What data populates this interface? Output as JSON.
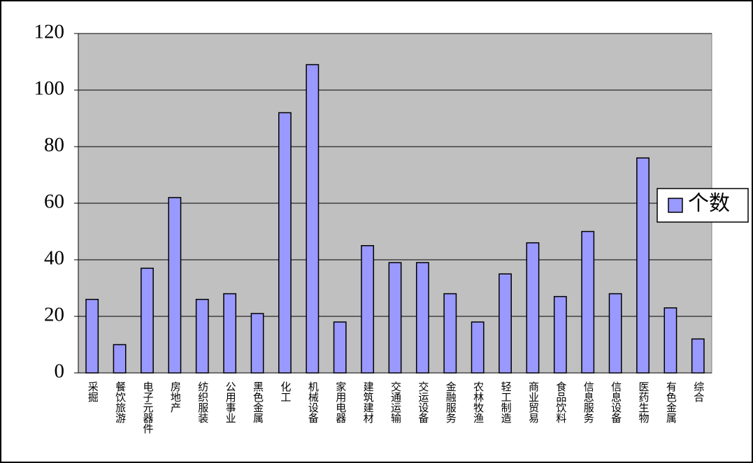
{
  "chart_data": {
    "type": "bar",
    "categories": [
      "采掘",
      "餐饮旅游",
      "电子元器件",
      "房地产",
      "纺织服装",
      "公用事业",
      "黑色金属",
      "化工",
      "机械设备",
      "家用电器",
      "建筑建材",
      "交通运输",
      "交运设备",
      "金融服务",
      "农林牧渔",
      "轻工制造",
      "商业贸易",
      "食品饮料",
      "信息服务",
      "信息设备",
      "医药生物",
      "有色金属",
      "综合"
    ],
    "series": [
      {
        "name": "个数",
        "color": "#9999ff",
        "values": [
          26,
          10,
          37,
          62,
          26,
          28,
          21,
          92,
          109,
          18,
          45,
          39,
          39,
          28,
          18,
          35,
          46,
          27,
          50,
          28,
          76,
          23,
          12
        ]
      }
    ],
    "ylim": [
      0,
      120
    ],
    "yticks": [
      0,
      20,
      40,
      60,
      80,
      100,
      120
    ],
    "grid": true,
    "legend": "right"
  }
}
